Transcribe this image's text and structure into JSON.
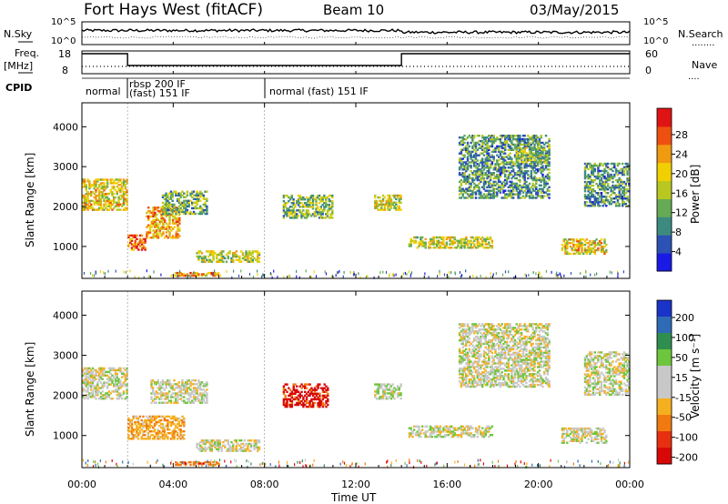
{
  "header": {
    "radar": "Fort Hays West (fitACF)",
    "beam": "Beam 10",
    "date": "03/May/2015"
  },
  "strip_labels": {
    "nsky": "N.Sky",
    "nsky_ticks": [
      "10^5",
      "10^0"
    ],
    "nsearch": "N.Search",
    "nsearch_dots": "........",
    "freq": "Freq.",
    "freq_unit": "[MHz]",
    "freq_ticks": [
      "18",
      "8"
    ],
    "nave": "Nave",
    "nave_dots": "....",
    "nave_ticks": [
      "60",
      "0"
    ],
    "cpid": "CPID",
    "cpid_entries": [
      "normal",
      "rbsp 200 IF",
      "(fast) 151 IF",
      "normal (fast) 151 IF"
    ]
  },
  "colors": {
    "power_scale": [
      "#1a1ae6",
      "#2c52b4",
      "#3d8a80",
      "#66aa55",
      "#b8c820",
      "#f0d000",
      "#f09a10",
      "#ee5010",
      "#e01414"
    ],
    "velocity_scale": [
      "#1a33c8",
      "#2f6ab6",
      "#2e8e50",
      "#6ec63c",
      "#c8c8c8",
      "#c8c8c8",
      "#f5b020",
      "#f07a10",
      "#e83010",
      "#d80808"
    ]
  },
  "chart_data": [
    {
      "type": "heatmap",
      "name": "power",
      "xlabel": "",
      "ylabel": "Slant Range [km]",
      "ylim": [
        200,
        4600
      ],
      "yticks": [
        "1000",
        "2000",
        "3000",
        "4000"
      ],
      "x_ticks": [
        "00:00",
        "04:00",
        "08:00",
        "12:00",
        "16:00",
        "20:00",
        "00:00"
      ],
      "colorbar": {
        "label": "Power [dB]",
        "ticks": [
          "4",
          "8",
          "12",
          "16",
          "20",
          "24",
          "28"
        ]
      },
      "echo_regions": [
        {
          "t": [
            0.0,
            2.0
          ],
          "r": [
            1900,
            2700
          ],
          "level": 0.6
        },
        {
          "t": [
            2.0,
            2.8
          ],
          "r": [
            900,
            1300
          ],
          "level": 0.9
        },
        {
          "t": [
            2.8,
            4.3
          ],
          "r": [
            1200,
            2000
          ],
          "level": 0.7
        },
        {
          "t": [
            3.5,
            5.5
          ],
          "r": [
            1800,
            2400
          ],
          "level": 0.35
        },
        {
          "t": [
            5.0,
            7.8
          ],
          "r": [
            600,
            900
          ],
          "level": 0.5
        },
        {
          "t": [
            4.0,
            6.0
          ],
          "r": [
            250,
            350
          ],
          "level": 0.75
        },
        {
          "t": [
            8.8,
            11.0
          ],
          "r": [
            1700,
            2300
          ],
          "level": 0.4
        },
        {
          "t": [
            12.8,
            14.0
          ],
          "r": [
            1900,
            2300
          ],
          "level": 0.55
        },
        {
          "t": [
            14.3,
            18.0
          ],
          "r": [
            950,
            1250
          ],
          "level": 0.55
        },
        {
          "t": [
            16.5,
            20.5
          ],
          "r": [
            2200,
            3800
          ],
          "level": 0.3
        },
        {
          "t": [
            19.0,
            20.5
          ],
          "r": [
            3100,
            3500
          ],
          "level": 0.45
        },
        {
          "t": [
            21.0,
            23.0
          ],
          "r": [
            800,
            1200
          ],
          "level": 0.6
        },
        {
          "t": [
            22.0,
            24.0
          ],
          "r": [
            2000,
            3100
          ],
          "level": 0.3
        }
      ]
    },
    {
      "type": "heatmap",
      "name": "velocity",
      "xlabel": "Time UT",
      "ylabel": "Slant Range [km]",
      "ylim": [
        200,
        4600
      ],
      "yticks": [
        "1000",
        "2000",
        "3000",
        "4000"
      ],
      "x_ticks": [
        "00:00",
        "04:00",
        "08:00",
        "12:00",
        "16:00",
        "20:00",
        "00:00"
      ],
      "colorbar": {
        "label": "Velocity [m s⁻¹]",
        "ticks": [
          "200",
          "100",
          "50",
          "15",
          "-15",
          "-50",
          "-100",
          "-200"
        ]
      },
      "echo_regions": [
        {
          "t": [
            0.0,
            2.0
          ],
          "r": [
            1900,
            2700
          ],
          "v": 0
        },
        {
          "t": [
            2.0,
            4.5
          ],
          "r": [
            900,
            1500
          ],
          "v": -40
        },
        {
          "t": [
            3.0,
            5.5
          ],
          "r": [
            1800,
            2400
          ],
          "v": 0
        },
        {
          "t": [
            5.0,
            7.8
          ],
          "r": [
            600,
            900
          ],
          "v": 0
        },
        {
          "t": [
            4.0,
            6.0
          ],
          "r": [
            250,
            350
          ],
          "v": -80
        },
        {
          "t": [
            8.8,
            10.8
          ],
          "r": [
            1700,
            2300
          ],
          "v": -120
        },
        {
          "t": [
            12.8,
            14.0
          ],
          "r": [
            1900,
            2300
          ],
          "v": 10
        },
        {
          "t": [
            14.3,
            18.0
          ],
          "r": [
            950,
            1250
          ],
          "v": 0
        },
        {
          "t": [
            16.5,
            20.5
          ],
          "r": [
            2200,
            3800
          ],
          "v": 0
        },
        {
          "t": [
            21.0,
            23.0
          ],
          "r": [
            800,
            1200
          ],
          "v": 0
        },
        {
          "t": [
            22.0,
            24.0
          ],
          "r": [
            2000,
            3100
          ],
          "v": 0
        }
      ]
    }
  ]
}
